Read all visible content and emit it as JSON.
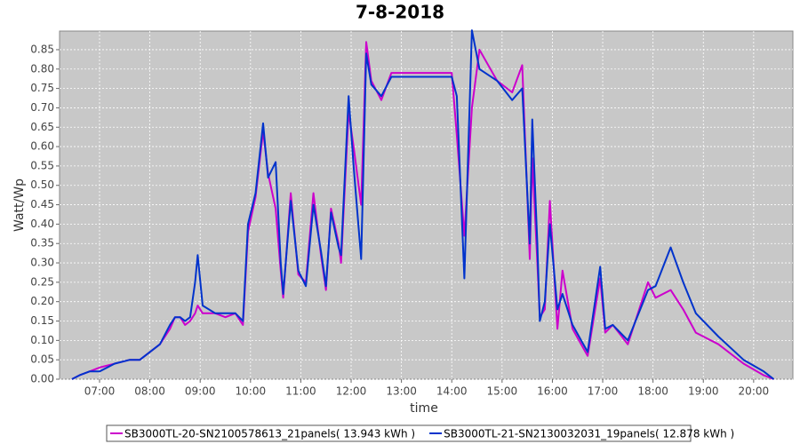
{
  "chart_data": {
    "type": "line",
    "title": "7-8-2018",
    "x_label": "time",
    "y_label": "Watt/Wp",
    "grid": true,
    "legend": "bottom",
    "xlim": [
      6.205,
      20.78
    ],
    "ylim": [
      0,
      0.898
    ],
    "xticks": [
      {
        "value": 7,
        "label": "07:00"
      },
      {
        "value": 8,
        "label": "08:00"
      },
      {
        "value": 9,
        "label": "09:00"
      },
      {
        "value": 10,
        "label": "10:00"
      },
      {
        "value": 11,
        "label": "11:00"
      },
      {
        "value": 12,
        "label": "12:00"
      },
      {
        "value": 13,
        "label": "13:00"
      },
      {
        "value": 14,
        "label": "14:00"
      },
      {
        "value": 15,
        "label": "15:00"
      },
      {
        "value": 16,
        "label": "16:00"
      },
      {
        "value": 17,
        "label": "17:00"
      },
      {
        "value": 18,
        "label": "18:00"
      },
      {
        "value": 19,
        "label": "19:00"
      },
      {
        "value": 20,
        "label": "20:00"
      }
    ],
    "yticks": [
      {
        "value": 0,
        "label": "0.00"
      },
      {
        "value": 0.05,
        "label": "0.05"
      },
      {
        "value": 0.1,
        "label": "0.10"
      },
      {
        "value": 0.15,
        "label": "0.15"
      },
      {
        "value": 0.2,
        "label": "0.20"
      },
      {
        "value": 0.25,
        "label": "0.25"
      },
      {
        "value": 0.3,
        "label": "0.30"
      },
      {
        "value": 0.35,
        "label": "0.35"
      },
      {
        "value": 0.4,
        "label": "0.40"
      },
      {
        "value": 0.45,
        "label": "0.45"
      },
      {
        "value": 0.5,
        "label": "0.50"
      },
      {
        "value": 0.55,
        "label": "0.55"
      },
      {
        "value": 0.6,
        "label": "0.60"
      },
      {
        "value": 0.65,
        "label": "0.65"
      },
      {
        "value": 0.7,
        "label": "0.70"
      },
      {
        "value": 0.75,
        "label": "0.75"
      },
      {
        "value": 0.8,
        "label": "0.80"
      },
      {
        "value": 0.85,
        "label": "0.85"
      }
    ],
    "x": [
      6.45,
      6.6,
      6.8,
      7.0,
      7.3,
      7.6,
      7.8,
      8.0,
      8.2,
      8.4,
      8.5,
      8.6,
      8.7,
      8.8,
      8.9,
      8.95,
      9.05,
      9.3,
      9.5,
      9.7,
      9.85,
      9.95,
      10.1,
      10.25,
      10.35,
      10.5,
      10.6,
      10.65,
      10.8,
      10.95,
      11.1,
      11.25,
      11.4,
      11.5,
      11.6,
      11.75,
      11.8,
      11.95,
      12.05,
      12.2,
      12.3,
      12.4,
      12.6,
      12.8,
      13.3,
      13.8,
      14.0,
      14.1,
      14.25,
      14.4,
      14.55,
      14.9,
      15.2,
      15.4,
      15.55,
      15.6,
      15.7,
      15.75,
      15.85,
      15.95,
      16.1,
      16.2,
      16.4,
      16.7,
      16.95,
      17.05,
      17.2,
      17.5,
      17.9,
      18.05,
      18.35,
      18.6,
      18.85,
      19.3,
      19.8,
      20.2,
      20.4
    ],
    "series": [
      {
        "name": "SB3000TL-20-SN2100578613_21panels( 13.943 kWh  )",
        "color": "#cc00cc",
        "values": [
          0,
          0.01,
          0.02,
          0.03,
          0.04,
          0.05,
          0.05,
          0.07,
          0.09,
          0.13,
          0.16,
          0.16,
          0.14,
          0.15,
          0.17,
          0.19,
          0.17,
          0.17,
          0.16,
          0.17,
          0.14,
          0.38,
          0.47,
          0.64,
          0.53,
          0.44,
          0.28,
          0.21,
          0.48,
          0.27,
          0.25,
          0.48,
          0.32,
          0.23,
          0.44,
          0.35,
          0.3,
          0.69,
          0.6,
          0.45,
          0.87,
          0.77,
          0.72,
          0.79,
          0.79,
          0.79,
          0.79,
          0.63,
          0.37,
          0.7,
          0.85,
          0.77,
          0.74,
          0.81,
          0.31,
          0.57,
          0.3,
          0.16,
          0.18,
          0.46,
          0.13,
          0.28,
          0.13,
          0.06,
          0.26,
          0.12,
          0.14,
          0.09,
          0.25,
          0.21,
          0.23,
          0.18,
          0.12,
          0.09,
          0.04,
          0.01,
          0
        ]
      },
      {
        "name": "SB3000TL-21-SN2130032031_19panels( 12.878 kWh  )",
        "color": "#0033cc",
        "values": [
          0,
          0.01,
          0.02,
          0.02,
          0.04,
          0.05,
          0.05,
          0.07,
          0.09,
          0.14,
          0.16,
          0.16,
          0.15,
          0.16,
          0.25,
          0.32,
          0.19,
          0.17,
          0.17,
          0.17,
          0.15,
          0.4,
          0.48,
          0.66,
          0.52,
          0.56,
          0.3,
          0.22,
          0.46,
          0.28,
          0.24,
          0.45,
          0.33,
          0.24,
          0.43,
          0.34,
          0.32,
          0.73,
          0.55,
          0.31,
          0.84,
          0.76,
          0.73,
          0.78,
          0.78,
          0.78,
          0.78,
          0.73,
          0.26,
          0.9,
          0.8,
          0.77,
          0.72,
          0.75,
          0.35,
          0.67,
          0.35,
          0.15,
          0.2,
          0.4,
          0.18,
          0.22,
          0.14,
          0.07,
          0.29,
          0.13,
          0.14,
          0.1,
          0.23,
          0.24,
          0.34,
          0.25,
          0.17,
          0.11,
          0.05,
          0.02,
          0
        ]
      }
    ]
  }
}
